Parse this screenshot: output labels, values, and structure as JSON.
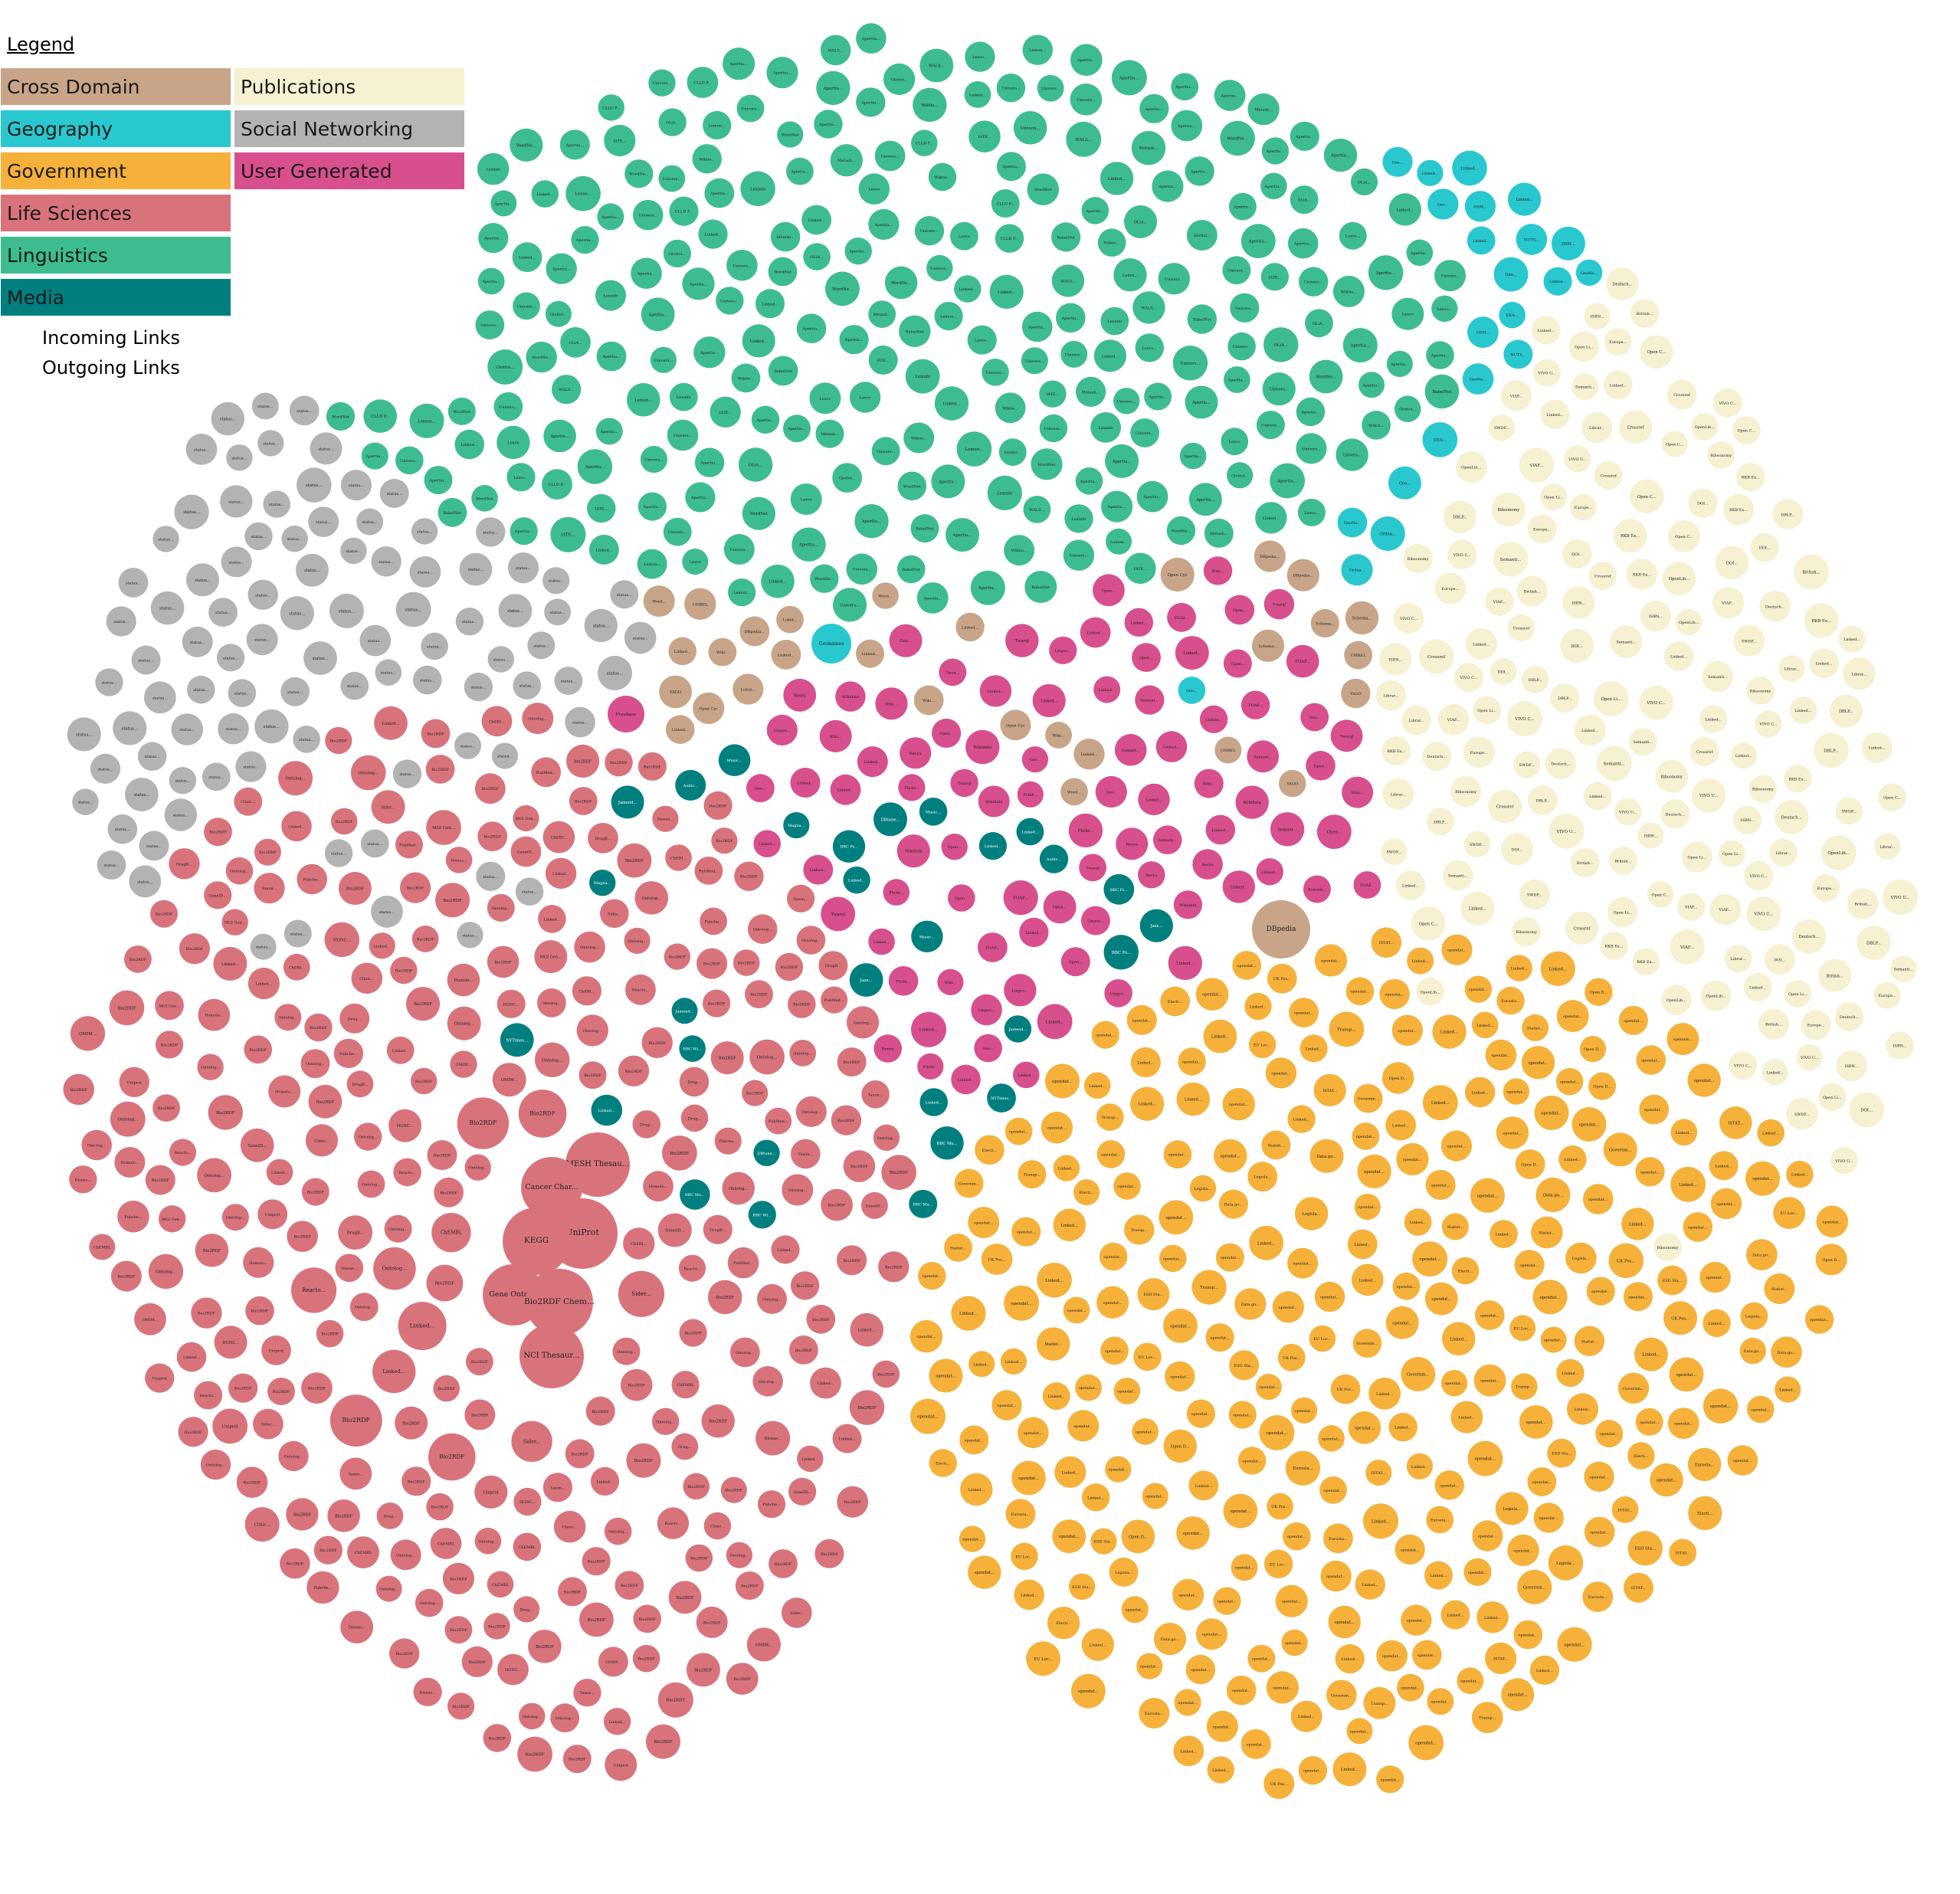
{
  "legend": {
    "title": "Legend",
    "categories": [
      {
        "key": "cross",
        "label": "Cross Domain",
        "color": "#c8a588"
      },
      {
        "key": "pub",
        "label": "Publications",
        "color": "#f5f1d1"
      },
      {
        "key": "geo",
        "label": "Geography",
        "color": "#29c8cf"
      },
      {
        "key": "social",
        "label": "Social Networking",
        "color": "#b3b3b3"
      },
      {
        "key": "gov",
        "label": "Government",
        "color": "#f6b13b"
      },
      {
        "key": "ugc",
        "label": "User Generated",
        "color": "#d84f8d"
      },
      {
        "key": "life",
        "label": "Life Sciences",
        "color": "#d9737b"
      },
      {
        "key": "ling",
        "label": "Linguistics",
        "color": "#3dbd8f"
      },
      {
        "key": "media",
        "label": "Media",
        "color": "#017f7f"
      }
    ],
    "incoming_label": "Incoming Links",
    "outgoing_label": "Outgoing Links"
  },
  "nodes": {
    "large": [
      {
        "label": "MESH Thesau...",
        "cat": "life"
      },
      {
        "label": "Cancer Char...",
        "cat": "life"
      },
      {
        "label": "UniProt",
        "cat": "life"
      },
      {
        "label": "KEGG",
        "cat": "life"
      },
      {
        "label": "Gene Ontol...",
        "cat": "life"
      },
      {
        "label": "Bio2RDF Chem...",
        "cat": "life"
      },
      {
        "label": "NCI Thesaur...",
        "cat": "life"
      },
      {
        "label": "DBpedia",
        "cat": "cross"
      },
      {
        "label": "Geonames",
        "cat": "geo"
      },
      {
        "label": "Freebase",
        "cat": "ugc"
      }
    ],
    "life": [
      "Bio2RDF",
      "Ontolog...",
      "Bio2RDF",
      "Linked...",
      "ChEMBL",
      "Bio2RDF",
      "Bio2RDF",
      "Uniprot",
      "Drug...",
      "Reacto...",
      "Bio2RDF",
      "Pubche...",
      "Taxon...",
      "Bio2RDF",
      "Ontolog...",
      "Diseas...",
      "Sider...",
      "Linked...",
      "Bio2RDF",
      "Bio2RDF",
      "Ontolog...",
      "ChEBI...",
      "MGI Gen...",
      "Bio2RDF",
      "HGNC...",
      "Bio2RDF",
      "Ontolog...",
      "Bio2RDF",
      "PubMed...",
      "OMIM...",
      "Bio2RDF",
      "Ontolog...",
      "Bio2RDF",
      "DrugB...",
      "Linked...",
      "Bio2RDF",
      "Ontolog...",
      "Bio2RDF",
      "Clinic...",
      "GeneID...",
      "Bio2RDF",
      "Ontolog...",
      "Bio2RDF",
      "Bio2RDF",
      "Homolo...",
      "Bio2RDF",
      "Ontolog...",
      "Bio2RDF"
    ],
    "gov": [
      "Linked...",
      "opendat...",
      "Statist...",
      "Governm...",
      "opendat...",
      "Data.go...",
      "opendat...",
      "Linked...",
      "Legisla...",
      "opendat...",
      "opendat...",
      "EU Loc...",
      "opendat...",
      "Linked...",
      "Eurosta...",
      "opendat...",
      "Open D...",
      "opendat...",
      "Transp...",
      "Linked...",
      "opendat...",
      "opendat...",
      "UK Pos...",
      "opendat...",
      "opendat...",
      "Linked...",
      "ISTAT...",
      "opendat...",
      "opendat...",
      "Linked...",
      "opendat...",
      "Electi...",
      "opendat...",
      "opendat...",
      "Linked...",
      "opendat...",
      "ESD Sta...",
      "opendat...",
      "opendat...",
      "Linked..."
    ],
    "ling": [
      "Glottol...",
      "Lexvo",
      "Wiktio...",
      "WordNet",
      "Lexinfo",
      "Apertiu...",
      "Univers...",
      "Lemon...",
      "Apertiu...",
      "Linked...",
      "BabelNet",
      "OLiA...",
      "Apertiu...",
      "Univers...",
      "IATE...",
      "WordNe...",
      "Apertiu...",
      "Lexvo...",
      "Univers...",
      "Apertiu...",
      "Linked...",
      "CLLD P...",
      "Apertiu...",
      "Univers...",
      "Metash...",
      "Apertiu...",
      "WALS...",
      "Apertiu...",
      "Univers...",
      "Apertiu..."
    ],
    "pub": [
      "Open Li...",
      "Librar...",
      "VIVO U...",
      "Bibsonomy",
      "DBLP...",
      "Linked...",
      "RKB Ex...",
      "Crossref",
      "DOI...",
      "VIVO C...",
      "SWDF...",
      "Open C...",
      "Europe...",
      "Deutsch...",
      "ISBN...",
      "British...",
      "Linked...",
      "VIAF...",
      "Semanti...",
      "OpenLib..."
    ],
    "social": [
      "status...",
      "status...",
      "status...",
      "status...",
      "status...",
      "status...",
      "status...",
      "status...",
      "status...",
      "status...",
      "status...",
      "status...",
      "status...",
      "status...",
      "status...",
      "status...",
      "status...",
      "status...",
      "status...",
      "status..."
    ],
    "ugc": [
      "Wikidata",
      "Linked...",
      "Open...",
      "Flickr...",
      "Revyu",
      "Linked...",
      "Semant...",
      "Wiki...",
      "FOAF...",
      "Linked...",
      "Open...",
      "Geo...",
      "Twarql",
      "Linked...",
      "Lingvo..."
    ],
    "media": [
      "BBC Mu...",
      "BBC Pr...",
      "Jamend...",
      "Music...",
      "Linked...",
      "NYTimes...",
      "BBC Wi...",
      "Jazz...",
      "DBtune...",
      "Linked...",
      "Magna...",
      "Audio..."
    ],
    "cross": [
      "YAGO",
      "Open Cyc",
      "UMBEL",
      "Linked...",
      "Wiki...",
      "Schema...",
      "DBpedia...",
      "Linked...",
      "Word...",
      "Lobid..."
    ],
    "geo": [
      "Linked...",
      "OSM...",
      "Geo...",
      "GeoNa...",
      "Ordna...",
      "NUTS...",
      "Linked...",
      "Geo...",
      "EEA..."
    ]
  }
}
